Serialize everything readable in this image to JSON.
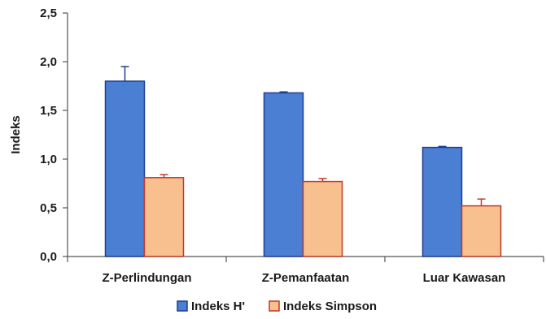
{
  "chart_data": {
    "type": "bar",
    "title": "",
    "xlabel": "",
    "ylabel": "Indeks",
    "ylim": [
      0,
      2.5
    ],
    "yticks": [
      "0,0",
      "0,5",
      "1,0",
      "1,5",
      "2,0",
      "2,5"
    ],
    "categories": [
      "Z-Perlindungan",
      "Z-Pemanfaatan",
      "Luar Kawasan"
    ],
    "series": [
      {
        "name": "Indeks H'",
        "values": [
          1.8,
          1.68,
          1.12
        ],
        "errors": [
          0.15,
          0.01,
          0.01
        ],
        "fill": "#4a7fd4",
        "stroke": "#1f3f8f"
      },
      {
        "name": "Indeks Simpson",
        "values": [
          0.81,
          0.77,
          0.52
        ],
        "errors": [
          0.03,
          0.03,
          0.07
        ],
        "fill": "#f9c08f",
        "stroke": "#c0392b"
      }
    ],
    "grid": false,
    "legend": "bottom"
  }
}
